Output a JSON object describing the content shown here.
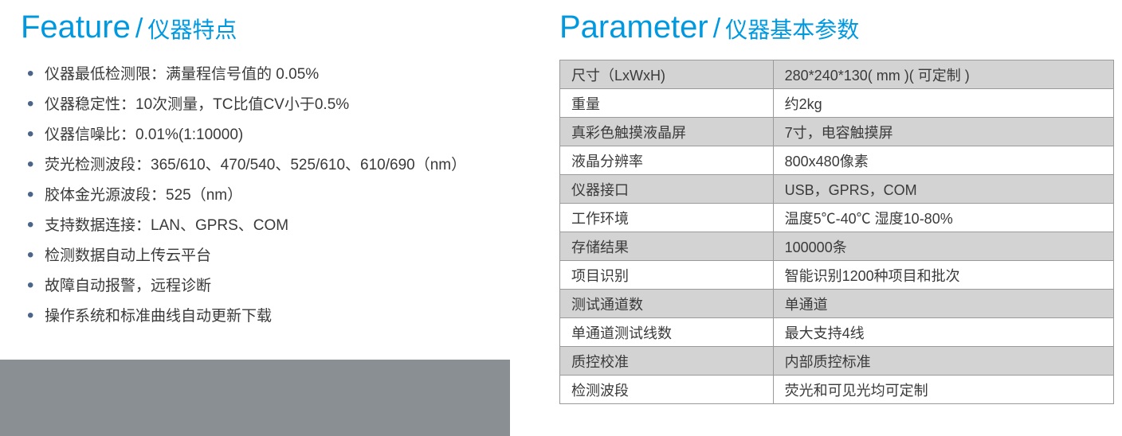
{
  "feature": {
    "title_en": "Feature",
    "title_slash": "/",
    "title_cn": "仪器特点",
    "title_color": "#0099e0",
    "title_en_fontsize": 40,
    "title_cn_fontsize": 28,
    "bullet_color": "#4a648a",
    "text_color": "#3a3a3a",
    "item_fontsize": 19,
    "items": [
      "仪器最低检测限：满量程信号值的 0.05%",
      "仪器稳定性：10次测量，TC比值CV小于0.5%",
      "仪器信噪比：0.01%(1:10000)",
      "荧光检测波段：365/610、470/540、525/610、610/690（nm）",
      "胶体金光源波段：525（nm）",
      "支持数据连接：LAN、GPRS、COM",
      "检测数据自动上传云平台",
      "故障自动报警，远程诊断",
      "操作系统和标准曲线自动更新下载"
    ],
    "bottom_bar_color": "#8a8f94"
  },
  "parameter": {
    "title_en": "Parameter",
    "title_slash": "/",
    "title_cn": "仪器基本参数",
    "title_color": "#0099e0",
    "shaded_bg": "#d3d3d3",
    "border_color": "#9a9a9a",
    "cell_fontsize": 18,
    "rows": [
      {
        "label": "尺寸（LxWxH)",
        "value": "280*240*130( mm )( 可定制 )",
        "shaded": true
      },
      {
        "label": "重量",
        "value": "约2kg",
        "shaded": false
      },
      {
        "label": "真彩色触摸液晶屏",
        "value": "7寸，电容触摸屏",
        "shaded": true
      },
      {
        "label": "液晶分辨率",
        "value": "800x480像素",
        "shaded": false
      },
      {
        "label": "仪器接口",
        "value": "USB，GPRS，COM",
        "shaded": true
      },
      {
        "label": "工作环境",
        "value": "温度5℃-40℃  湿度10-80%",
        "shaded": false
      },
      {
        "label": "存储结果",
        "value": "100000条",
        "shaded": true
      },
      {
        "label": "项目识别",
        "value": "智能识别1200种项目和批次",
        "shaded": false
      },
      {
        "label": "测试通道数",
        "value": "单通道",
        "shaded": true
      },
      {
        "label": "单通道测试线数",
        "value": "最大支持4线",
        "shaded": false
      },
      {
        "label": "质控校准",
        "value": "内部质控标准",
        "shaded": true
      },
      {
        "label": "检测波段",
        "value": "荧光和可见光均可定制",
        "shaded": false
      }
    ]
  }
}
